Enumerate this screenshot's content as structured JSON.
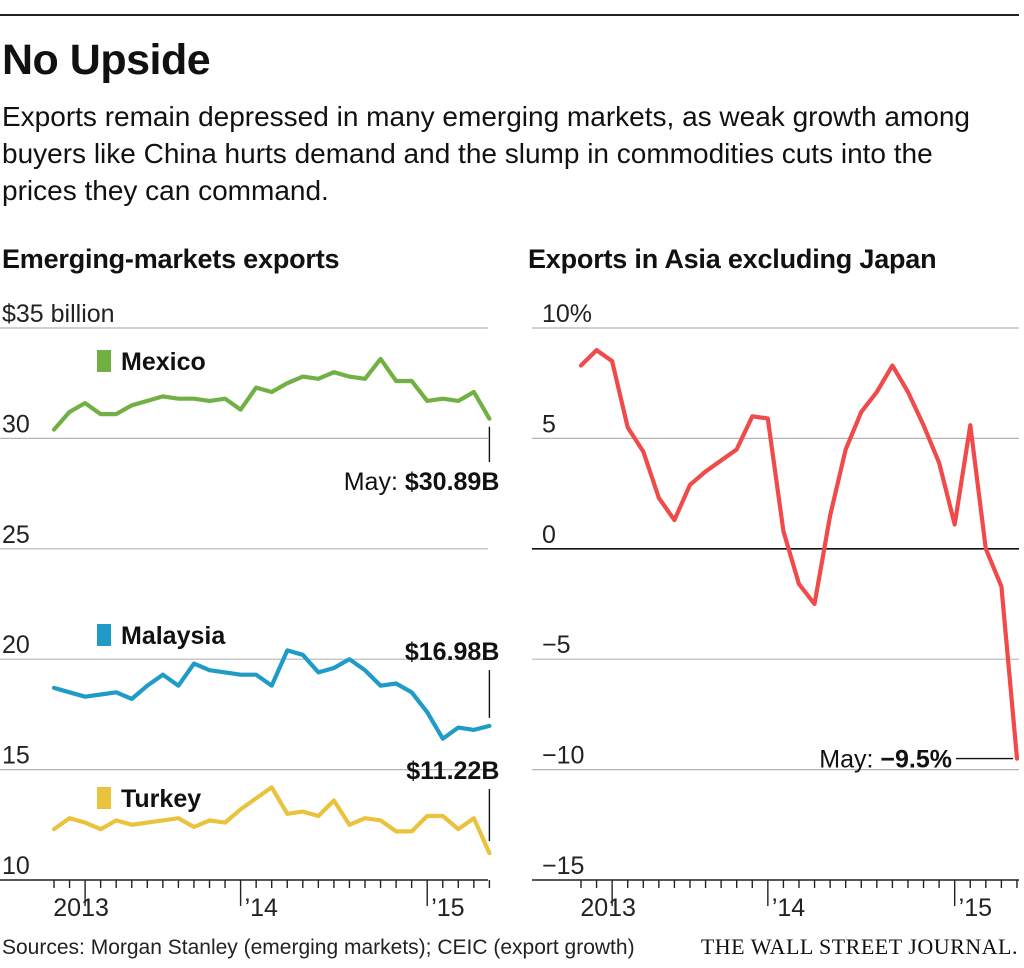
{
  "headline": "No Upside",
  "dek": "Exports remain depressed in many emerging markets, as weak growth among buyers like China hurts demand and the slump in commodities cuts into the prices they can command.",
  "source": "Sources: Morgan Stanley (emerging markets); CEIC (export growth)",
  "brand": "THE WALL STREET JOURNAL.",
  "chart_data": [
    {
      "type": "line",
      "title": "Emerging-markets exports",
      "ylabel": "$35 billion",
      "ylim": [
        10,
        35
      ],
      "yticks": [
        {
          "value": 35,
          "label": "$35 billion"
        },
        {
          "value": 30,
          "label": "30"
        },
        {
          "value": 25,
          "label": "25"
        },
        {
          "value": 20,
          "label": "20"
        },
        {
          "value": 15,
          "label": "15"
        },
        {
          "value": 10,
          "label": "10"
        }
      ],
      "x_labels": [
        {
          "label": "2013",
          "index": 2
        },
        {
          "label": "’14",
          "index": 12
        },
        {
          "label": "’15",
          "index": 24
        }
      ],
      "x_month_count": 29,
      "series": [
        {
          "name": "Mexico",
          "color": "#72b043",
          "values": [
            30.4,
            31.2,
            31.6,
            31.1,
            31.1,
            31.5,
            31.7,
            31.9,
            31.8,
            31.8,
            31.7,
            31.8,
            31.3,
            32.3,
            32.1,
            32.5,
            32.8,
            32.7,
            33.0,
            32.8,
            32.7,
            33.6,
            32.6,
            32.6,
            31.7,
            31.8,
            31.7,
            32.1,
            30.89
          ],
          "callout": {
            "prefix": "May: ",
            "value": "$30.89B"
          }
        },
        {
          "name": "Malaysia",
          "color": "#1f9bc8",
          "values": [
            18.7,
            18.5,
            18.3,
            18.4,
            18.5,
            18.2,
            18.8,
            19.3,
            18.8,
            19.8,
            19.5,
            19.4,
            19.3,
            19.3,
            18.8,
            20.4,
            20.2,
            19.4,
            19.6,
            20.0,
            19.5,
            18.8,
            18.9,
            18.5,
            17.6,
            16.4,
            16.9,
            16.8,
            16.98
          ],
          "callout": {
            "prefix": "",
            "value": "$16.98B"
          }
        },
        {
          "name": "Turkey",
          "color": "#e9c33d",
          "values": [
            12.3,
            12.8,
            12.6,
            12.3,
            12.7,
            12.5,
            12.6,
            12.7,
            12.8,
            12.4,
            12.7,
            12.6,
            13.2,
            13.7,
            14.2,
            13.0,
            13.1,
            12.9,
            13.6,
            12.5,
            12.8,
            12.7,
            12.2,
            12.2,
            12.9,
            12.9,
            12.3,
            12.8,
            11.22
          ],
          "callout": {
            "prefix": "",
            "value": "$11.22B"
          }
        }
      ]
    },
    {
      "type": "line",
      "title": "Exports in Asia excluding Japan",
      "ylim": [
        -15,
        10
      ],
      "yticks": [
        {
          "value": 10,
          "label": "10%"
        },
        {
          "value": 5,
          "label": "5"
        },
        {
          "value": 0,
          "label": "0"
        },
        {
          "value": -5,
          "label": "−5"
        },
        {
          "value": -10,
          "label": "−10"
        },
        {
          "value": -15,
          "label": "−15"
        }
      ],
      "x_labels": [
        {
          "label": "2013",
          "index": 2
        },
        {
          "label": "’14",
          "index": 12
        },
        {
          "label": "’15",
          "index": 24
        }
      ],
      "x_month_count": 29,
      "series": [
        {
          "color": "#f04a4a",
          "values": [
            8.3,
            9.0,
            8.5,
            5.5,
            4.4,
            2.3,
            1.3,
            2.9,
            3.5,
            4.0,
            4.5,
            6.0,
            5.9,
            0.8,
            -1.6,
            -2.5,
            1.5,
            4.5,
            6.2,
            7.1,
            8.3,
            7.1,
            5.6,
            3.9,
            1.1,
            5.6,
            0.0,
            -1.7,
            -9.5
          ],
          "callout": {
            "prefix": "May: ",
            "value": "−9.5%"
          }
        }
      ]
    }
  ],
  "colors": {
    "zero_line": "#111111",
    "grid": "#b5b5b5",
    "axis": "#222222"
  }
}
